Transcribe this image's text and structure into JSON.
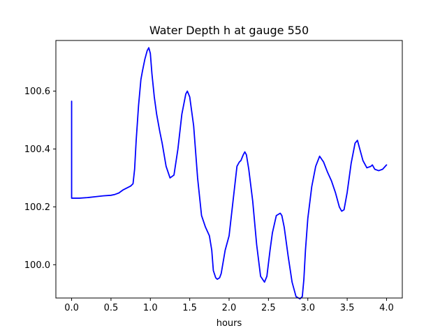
{
  "chart_data": {
    "type": "line",
    "title": "Water Depth h at gauge 550",
    "xlabel": "hours",
    "ylabel": "",
    "xlim": [
      -0.2,
      4.2
    ],
    "ylim": [
      99.885,
      100.775
    ],
    "x_ticks": [
      0.0,
      0.5,
      1.0,
      1.5,
      2.0,
      2.5,
      3.0,
      3.5,
      4.0
    ],
    "x_tick_labels": [
      "0.0",
      "0.5",
      "1.0",
      "1.5",
      "2.0",
      "2.5",
      "3.0",
      "3.5",
      "4.0"
    ],
    "y_ticks": [
      100.0,
      100.2,
      100.4,
      100.6
    ],
    "y_tick_labels": [
      "100.0",
      "100.2",
      "100.4",
      "100.6"
    ],
    "grid": false,
    "series": [
      {
        "color": "#0000ff",
        "x": [
          0.0,
          0.0,
          0.01,
          0.1,
          0.2,
          0.3,
          0.4,
          0.5,
          0.55,
          0.6,
          0.65,
          0.7,
          0.75,
          0.78,
          0.8,
          0.82,
          0.85,
          0.88,
          0.9,
          0.93,
          0.96,
          0.98,
          1.0,
          1.02,
          1.05,
          1.08,
          1.12,
          1.15,
          1.2,
          1.25,
          1.3,
          1.35,
          1.4,
          1.45,
          1.47,
          1.5,
          1.55,
          1.6,
          1.65,
          1.7,
          1.75,
          1.78,
          1.8,
          1.83,
          1.85,
          1.88,
          1.9,
          1.95,
          2.0,
          2.05,
          2.1,
          2.13,
          2.15,
          2.18,
          2.2,
          2.22,
          2.25,
          2.3,
          2.35,
          2.4,
          2.45,
          2.48,
          2.52,
          2.55,
          2.6,
          2.65,
          2.67,
          2.7,
          2.75,
          2.8,
          2.85,
          2.9,
          2.93,
          2.95,
          2.97,
          3.0,
          3.05,
          3.1,
          3.15,
          3.2,
          3.25,
          3.3,
          3.35,
          3.4,
          3.43,
          3.46,
          3.5,
          3.55,
          3.6,
          3.63,
          3.65,
          3.7,
          3.75,
          3.8,
          3.82,
          3.85,
          3.9,
          3.95,
          4.0
        ],
        "values": [
          100.565,
          100.23,
          100.23,
          100.23,
          100.232,
          100.235,
          100.238,
          100.24,
          100.243,
          100.248,
          100.258,
          100.265,
          100.272,
          100.28,
          100.33,
          100.43,
          100.55,
          100.64,
          100.67,
          100.71,
          100.74,
          100.75,
          100.73,
          100.66,
          100.58,
          100.52,
          100.46,
          100.42,
          100.34,
          100.3,
          100.31,
          100.4,
          100.52,
          100.59,
          100.6,
          100.58,
          100.48,
          100.3,
          100.17,
          100.13,
          100.1,
          100.05,
          99.98,
          99.955,
          99.95,
          99.955,
          99.97,
          100.05,
          100.1,
          100.22,
          100.34,
          100.355,
          100.36,
          100.38,
          100.39,
          100.38,
          100.33,
          100.22,
          100.07,
          99.96,
          99.94,
          99.96,
          100.05,
          100.11,
          100.17,
          100.178,
          100.17,
          100.13,
          100.03,
          99.94,
          99.89,
          99.882,
          99.89,
          99.95,
          100.05,
          100.16,
          100.27,
          100.34,
          100.375,
          100.355,
          100.32,
          100.29,
          100.25,
          100.2,
          100.185,
          100.19,
          100.25,
          100.35,
          100.42,
          100.43,
          100.41,
          100.36,
          100.335,
          100.34,
          100.345,
          100.33,
          100.325,
          100.33,
          100.345
        ]
      }
    ]
  }
}
